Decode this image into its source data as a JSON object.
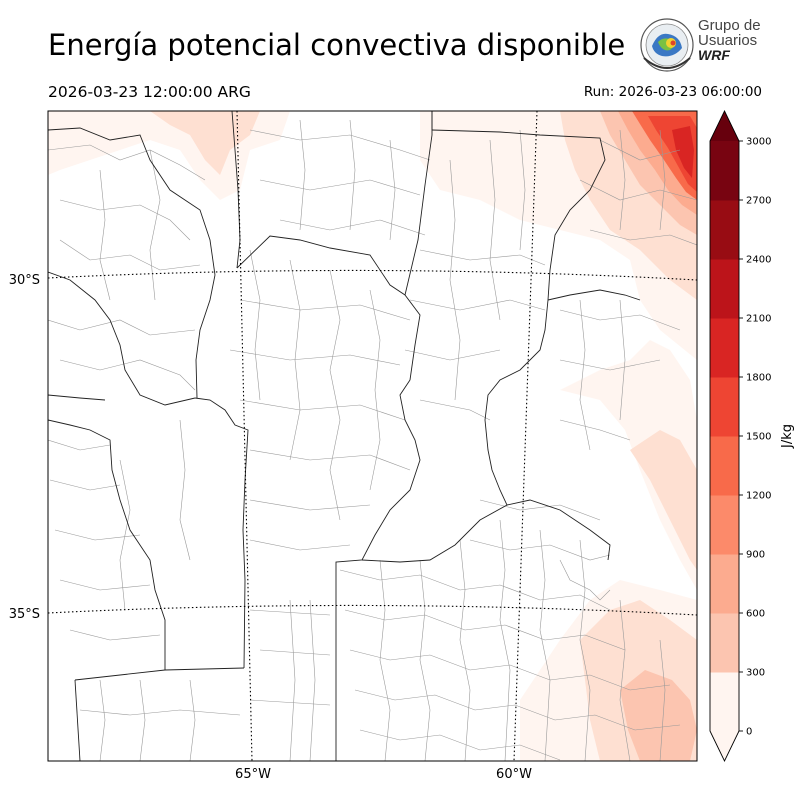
{
  "title": "Energía potencial convectiva disponible",
  "valid_time": "2026-03-23 12:00:00 ARG",
  "run_time": "Run: 2026-03-23 06:00:00",
  "logo": {
    "line1": "Grupo de",
    "line2": "Usuarios",
    "line3": "WRF"
  },
  "map": {
    "lat_labels": [
      "30°S",
      "35°S"
    ],
    "lon_labels": [
      "65°W",
      "60°W"
    ],
    "field": "CAPE"
  },
  "colorbar": {
    "unit": "J/kg",
    "ticks": [
      "0",
      "300",
      "600",
      "900",
      "1200",
      "1500",
      "1800",
      "2100",
      "2400",
      "2700",
      "3000"
    ],
    "colors": [
      "#fff5f0",
      "#fee0d2",
      "#fcc5b0",
      "#fcab8f",
      "#fc8a6a",
      "#f86a4a",
      "#ee4533",
      "#d92523",
      "#bc141a",
      "#980c13",
      "#780411"
    ],
    "extend_color_top": "#67000d"
  }
}
